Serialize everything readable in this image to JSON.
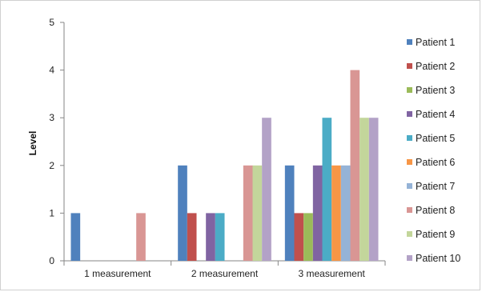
{
  "chart_data": {
    "type": "bar",
    "ylabel": "Level",
    "xlabel": "",
    "ylim": [
      0,
      5
    ],
    "yticks": [
      0,
      1,
      2,
      3,
      4,
      5
    ],
    "grid": false,
    "legend_position": "right",
    "categories": [
      "1 measurement",
      "2 measurement",
      "3 measurement"
    ],
    "series": [
      {
        "name": "Patient 1",
        "color": "#4F81BD",
        "values": [
          1,
          2,
          2
        ]
      },
      {
        "name": "Patient 2",
        "color": "#C0504D",
        "values": [
          0,
          1,
          1
        ]
      },
      {
        "name": "Patient 3",
        "color": "#9BBB59",
        "values": [
          0,
          0,
          1
        ]
      },
      {
        "name": "Patient 4",
        "color": "#8064A2",
        "values": [
          0,
          1,
          2
        ]
      },
      {
        "name": "Patient 5",
        "color": "#4BACC6",
        "values": [
          0,
          1,
          3
        ]
      },
      {
        "name": "Patient 6",
        "color": "#F79646",
        "values": [
          0,
          0,
          2
        ]
      },
      {
        "name": "Patient 7",
        "color": "#95B3D7",
        "values": [
          0,
          0,
          2
        ]
      },
      {
        "name": "Patient 8",
        "color": "#D99694",
        "values": [
          1,
          2,
          4
        ]
      },
      {
        "name": "Patient 9",
        "color": "#C3D69B",
        "values": [
          0,
          2,
          3
        ]
      },
      {
        "name": "Patient 10",
        "color": "#B3A2C7",
        "values": [
          0,
          3,
          3
        ]
      }
    ]
  }
}
